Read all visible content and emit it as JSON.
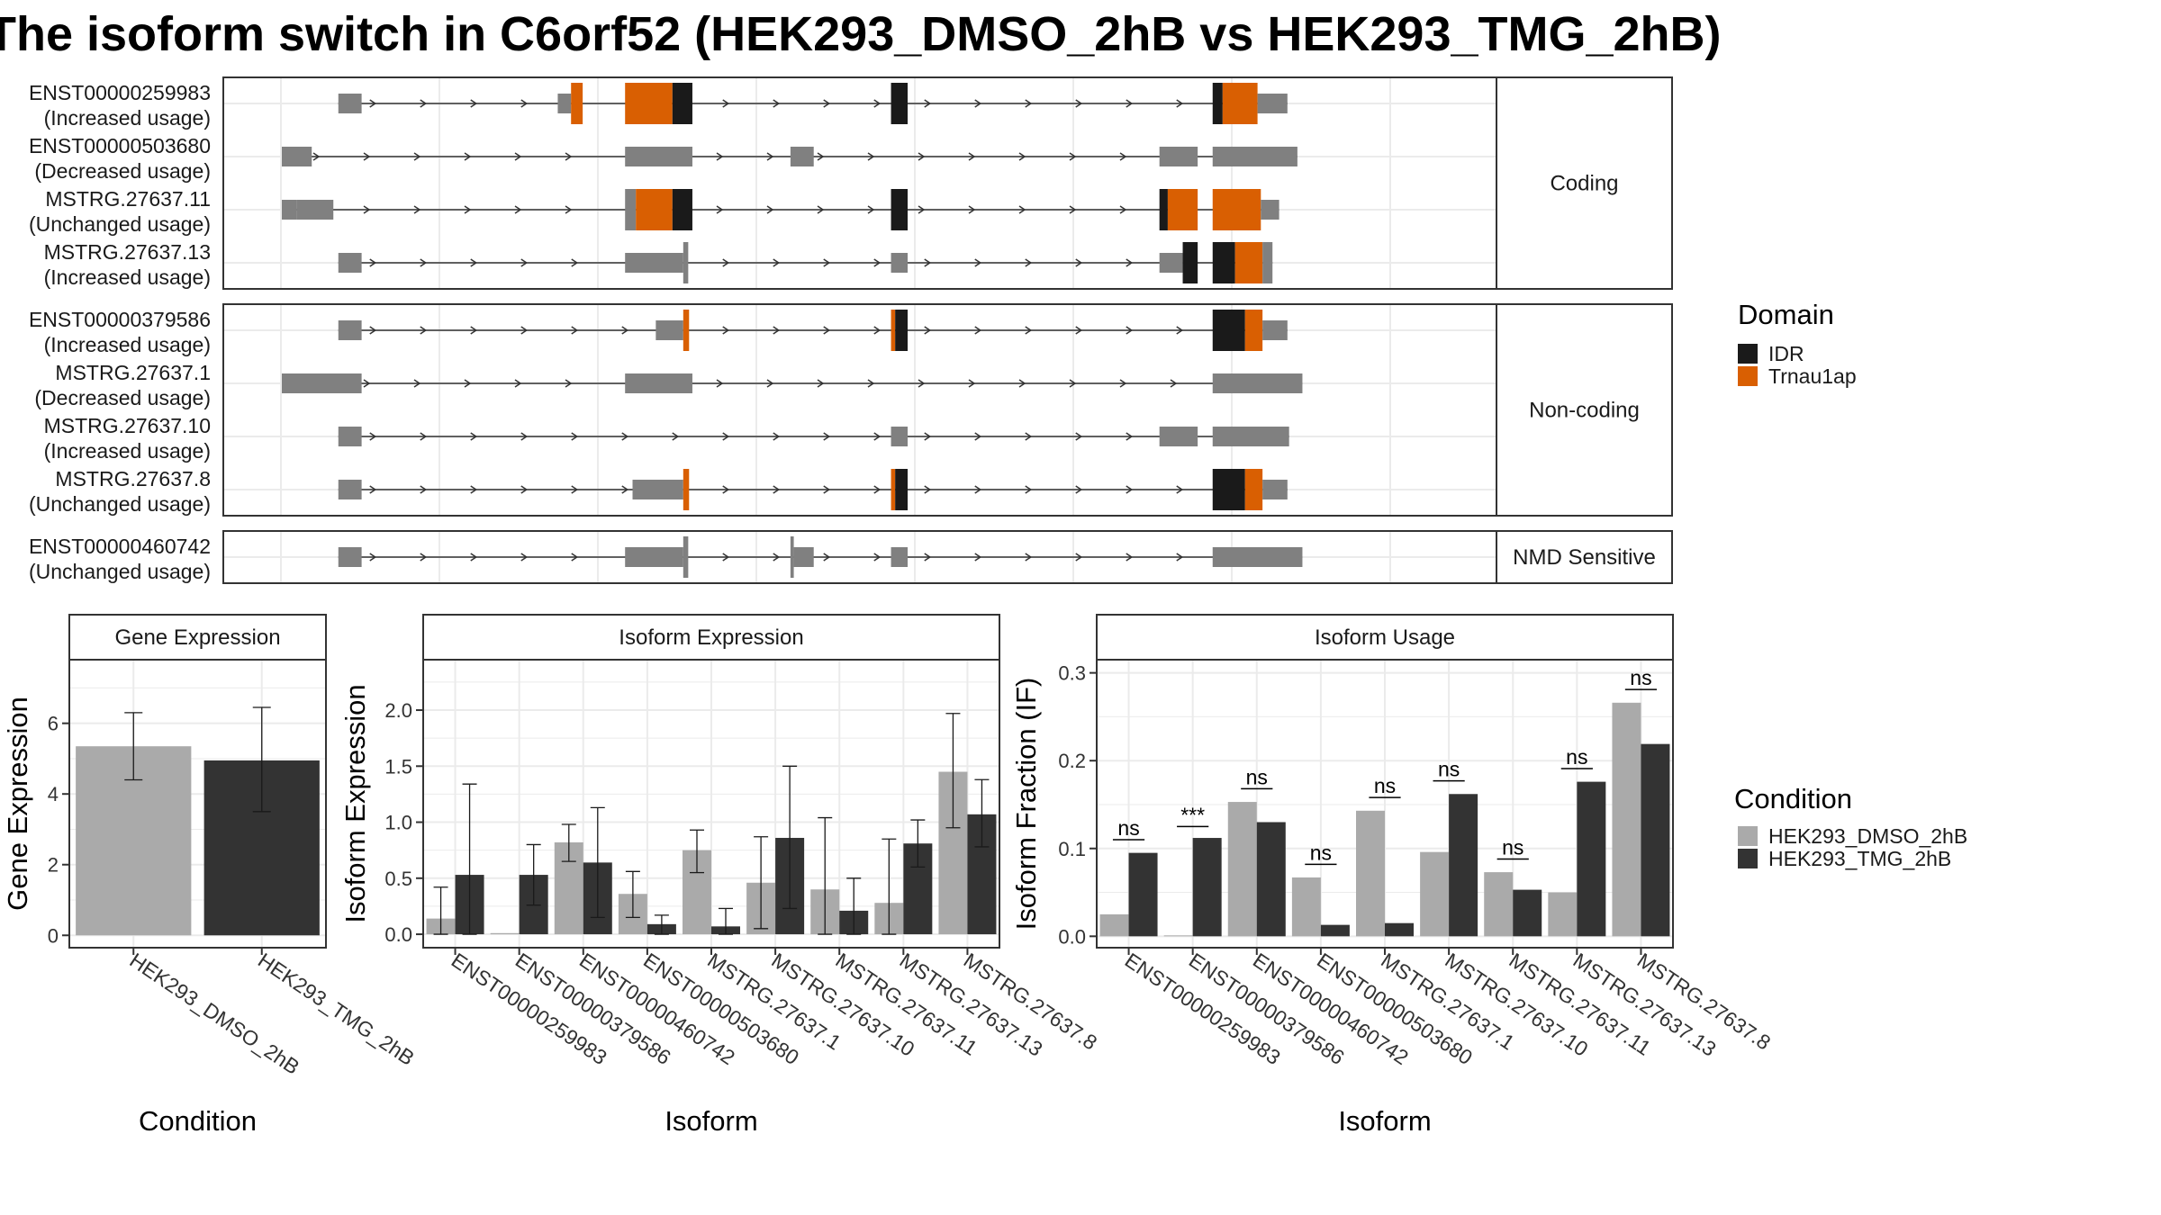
{
  "title": "The isoform switch in C6orf52 (HEK293_DMSO_2hB vs HEK293_TMG_2hB)",
  "colors": {
    "exon": "#808080",
    "idr": "#1a1a1a",
    "trnau1ap": "#d95f02",
    "dmso": "#aaaaaa",
    "tmg": "#333333"
  },
  "structure": {
    "genome_range": [
      0,
      1000
    ],
    "groups": [
      {
        "label": "Coding",
        "transcripts": [
          {
            "name": "ENST00000259983",
            "status": "(Increased usage)",
            "exons": [
              [
                68,
                96,
                "S"
              ],
              [
                332,
                348,
                "S"
              ],
              [
                348,
                362,
                "T"
              ],
              [
                413,
                470,
                "T"
              ],
              [
                470,
                494,
                "I"
              ],
              [
                733,
                753,
                "I"
              ],
              [
                1120,
                1132,
                "I"
              ],
              [
                1132,
                1174,
                "T"
              ],
              [
                1174,
                1210,
                "S"
              ]
            ]
          },
          {
            "name": "ENST00000503680",
            "status": "(Decreased usage)",
            "exons": [
              [
                0,
                36,
                "S"
              ],
              [
                413,
                494,
                "S"
              ],
              [
                612,
                640,
                "S"
              ],
              [
                1056,
                1102,
                "S"
              ],
              [
                1120,
                1222,
                "S"
              ]
            ]
          },
          {
            "name": "MSTRG.27637.11",
            "status": "(Unchanged usage)",
            "exons": [
              [
                0,
                18,
                "S"
              ],
              [
                18,
                62,
                "S"
              ],
              [
                413,
                426,
                "S"
              ],
              [
                426,
                470,
                "T"
              ],
              [
                470,
                494,
                "I"
              ],
              [
                733,
                753,
                "I"
              ],
              [
                1056,
                1066,
                "I"
              ],
              [
                1066,
                1102,
                "T"
              ],
              [
                1120,
                1178,
                "T"
              ],
              [
                1178,
                1200,
                "S"
              ]
            ]
          },
          {
            "name": "MSTRG.27637.13",
            "status": "(Increased usage)",
            "exons": [
              [
                68,
                96,
                "S"
              ],
              [
                413,
                483,
                "S"
              ],
              [
                483,
                489,
                "S"
              ],
              [
                733,
                753,
                "S"
              ],
              [
                1056,
                1084,
                "S"
              ],
              [
                1084,
                1102,
                "I"
              ],
              [
                1120,
                1147,
                "I"
              ],
              [
                1147,
                1180,
                "T"
              ],
              [
                1180,
                1192,
                "S"
              ]
            ]
          }
        ]
      },
      {
        "label": "Non-coding",
        "transcripts": [
          {
            "name": "ENST00000379586",
            "status": "(Increased usage)",
            "exons": [
              [
                68,
                96,
                "S"
              ],
              [
                450,
                483,
                "S"
              ],
              [
                483,
                490,
                "T"
              ],
              [
                733,
                738,
                "T"
              ],
              [
                738,
                753,
                "I"
              ],
              [
                1120,
                1159,
                "I"
              ],
              [
                1159,
                1180,
                "T"
              ],
              [
                1180,
                1210,
                "S"
              ]
            ]
          },
          {
            "name": "MSTRG.27637.1",
            "status": "(Decreased usage)",
            "exons": [
              [
                0,
                96,
                "S"
              ],
              [
                413,
                494,
                "S"
              ],
              [
                1120,
                1228,
                "S"
              ]
            ]
          },
          {
            "name": "MSTRG.27637.10",
            "status": "(Increased usage)",
            "exons": [
              [
                68,
                96,
                "S"
              ],
              [
                733,
                753,
                "S"
              ],
              [
                1056,
                1102,
                "S"
              ],
              [
                1120,
                1212,
                "S"
              ]
            ]
          },
          {
            "name": "MSTRG.27637.8",
            "status": "(Unchanged usage)",
            "exons": [
              [
                68,
                96,
                "S"
              ],
              [
                422,
                483,
                "S"
              ],
              [
                483,
                490,
                "T"
              ],
              [
                733,
                738,
                "T"
              ],
              [
                738,
                753,
                "I"
              ],
              [
                1120,
                1159,
                "I"
              ],
              [
                1159,
                1180,
                "T"
              ],
              [
                1180,
                1210,
                "S"
              ]
            ]
          }
        ]
      },
      {
        "label": "NMD Sensitive",
        "transcripts": [
          {
            "name": "ENST00000460742",
            "status": "(Unchanged usage)",
            "exons": [
              [
                68,
                96,
                "S"
              ],
              [
                413,
                483,
                "S"
              ],
              [
                483,
                489,
                "S"
              ],
              [
                612,
                616,
                "S"
              ],
              [
                616,
                640,
                "S"
              ],
              [
                733,
                753,
                "S"
              ],
              [
                1120,
                1228,
                "S"
              ]
            ]
          }
        ]
      }
    ]
  },
  "legend_domain": {
    "title": "Domain",
    "items": [
      {
        "label": "IDR",
        "color": "#1a1a1a"
      },
      {
        "label": "Trnau1ap",
        "color": "#d95f02"
      }
    ]
  },
  "legend_condition": {
    "title": "Condition",
    "items": [
      {
        "label": "HEK293_DMSO_2hB",
        "color": "#aaaaaa"
      },
      {
        "label": "HEK293_TMG_2hB",
        "color": "#333333"
      }
    ]
  },
  "chart_data": [
    {
      "type": "bar",
      "title": "Gene Expression",
      "xlabel": "Condition",
      "ylabel": "Gene Expression",
      "categories": [
        "HEK293_DMSO_2hB",
        "HEK293_TMG_2hB"
      ],
      "values": [
        5.35,
        4.95
      ],
      "error_low": [
        4.4,
        3.5
      ],
      "error_high": [
        6.3,
        6.45
      ],
      "ylim": [
        -0.35,
        7.8
      ],
      "yticks": [
        "0",
        "2",
        "4",
        "6"
      ]
    },
    {
      "type": "bar",
      "title": "Isoform Expression",
      "xlabel": "Isoform",
      "ylabel": "Isoform Expression",
      "categories": [
        "ENST00000259983",
        "ENST00000379586",
        "ENST00000460742",
        "ENST00000503680",
        "MSTRG.27637.1",
        "MSTRG.27637.10",
        "MSTRG.27637.11",
        "MSTRG.27637.13",
        "MSTRG.27637.8"
      ],
      "ylim": [
        -0.12,
        2.45
      ],
      "yticks": [
        "0.0",
        "0.5",
        "1.0",
        "1.5",
        "2.0"
      ],
      "series": [
        {
          "name": "HEK293_DMSO_2hB",
          "values": [
            0.14,
            0.01,
            0.82,
            0.36,
            0.75,
            0.46,
            0.4,
            0.28,
            1.45
          ],
          "error_low": [
            0.0,
            null,
            0.65,
            0.15,
            0.55,
            0.05,
            0.0,
            0.0,
            0.95
          ],
          "error_high": [
            0.42,
            null,
            0.98,
            0.56,
            0.93,
            0.87,
            1.04,
            0.85,
            1.97
          ]
        },
        {
          "name": "HEK293_TMG_2hB",
          "values": [
            0.53,
            0.53,
            0.64,
            0.09,
            0.07,
            0.86,
            0.21,
            0.81,
            1.07
          ],
          "error_low": [
            0.0,
            0.26,
            0.15,
            0.0,
            0.0,
            0.23,
            0.0,
            0.6,
            0.78
          ],
          "error_high": [
            1.34,
            0.8,
            1.13,
            0.17,
            0.23,
            1.5,
            0.5,
            1.02,
            1.38
          ]
        }
      ]
    },
    {
      "type": "bar",
      "title": "Isoform Usage",
      "xlabel": "Isoform",
      "ylabel": "Isoform Fraction (IF)",
      "categories": [
        "ENST00000259983",
        "ENST00000379586",
        "ENST00000460742",
        "ENST00000503680",
        "MSTRG.27637.1",
        "MSTRG.27637.10",
        "MSTRG.27637.11",
        "MSTRG.27637.13",
        "MSTRG.27637.8"
      ],
      "ylim": [
        -0.013,
        0.315
      ],
      "yticks": [
        "0.0",
        "0.1",
        "0.2",
        "0.3"
      ],
      "series": [
        {
          "name": "HEK293_DMSO_2hB",
          "values": [
            0.025,
            0.001,
            0.153,
            0.067,
            0.143,
            0.096,
            0.073,
            0.05,
            0.266
          ]
        },
        {
          "name": "HEK293_TMG_2hB",
          "values": [
            0.095,
            0.112,
            0.13,
            0.013,
            0.015,
            0.162,
            0.053,
            0.176,
            0.219
          ]
        }
      ],
      "significance": [
        "ns",
        "***",
        "ns",
        "ns",
        "ns",
        "ns",
        "ns",
        "ns",
        "ns"
      ],
      "sig_y": [
        0.11,
        0.125,
        0.168,
        0.082,
        0.158,
        0.177,
        0.088,
        0.191,
        0.281
      ]
    }
  ]
}
